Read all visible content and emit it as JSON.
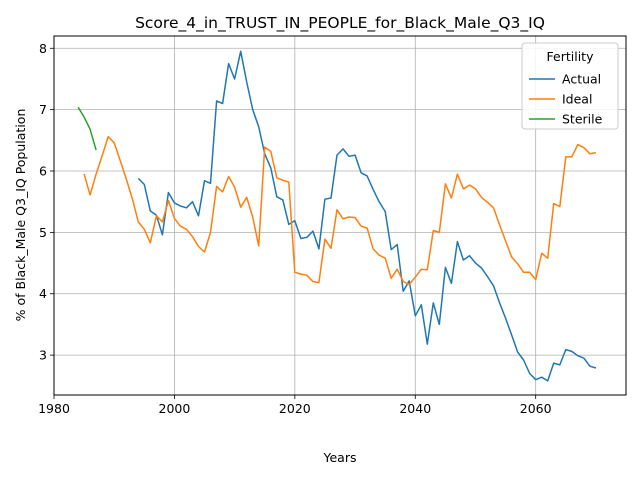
{
  "chart_data": {
    "type": "line",
    "title": "Score_4_in_TRUST_IN_PEOPLE_for_Black_Male_Q3_IQ",
    "xlabel": "Years",
    "ylabel": "% of Black_Male Q3_IQ Population",
    "xlim": [
      1980,
      2075
    ],
    "ylim": [
      2.35,
      8.2
    ],
    "xticks": [
      1980,
      2000,
      2020,
      2040,
      2060
    ],
    "yticks": [
      3,
      4,
      5,
      6,
      7,
      8
    ],
    "grid": true,
    "legend": {
      "title": "Fertility",
      "placement": "top-right"
    },
    "series": [
      {
        "name": "Actual",
        "color": "#1f77b4",
        "points": [
          [
            1994,
            5.88
          ],
          [
            1995,
            5.78
          ],
          [
            1996,
            5.35
          ],
          [
            1997,
            5.28
          ],
          [
            1998,
            4.96
          ],
          [
            1999,
            5.65
          ],
          [
            2000,
            5.48
          ],
          [
            2001,
            5.43
          ],
          [
            2002,
            5.4
          ],
          [
            2003,
            5.5
          ],
          [
            2004,
            5.27
          ],
          [
            2005,
            5.84
          ],
          [
            2006,
            5.8
          ],
          [
            2007,
            7.14
          ],
          [
            2008,
            7.1
          ],
          [
            2009,
            7.75
          ],
          [
            2010,
            7.5
          ],
          [
            2011,
            7.95
          ],
          [
            2012,
            7.45
          ],
          [
            2013,
            7.0
          ],
          [
            2014,
            6.72
          ],
          [
            2015,
            6.28
          ],
          [
            2016,
            6.05
          ],
          [
            2017,
            5.58
          ],
          [
            2018,
            5.53
          ],
          [
            2019,
            5.13
          ],
          [
            2020,
            5.19
          ],
          [
            2021,
            4.9
          ],
          [
            2022,
            4.92
          ],
          [
            2023,
            5.02
          ],
          [
            2024,
            4.73
          ],
          [
            2025,
            5.54
          ],
          [
            2026,
            5.56
          ],
          [
            2027,
            6.26
          ],
          [
            2028,
            6.36
          ],
          [
            2029,
            6.24
          ],
          [
            2030,
            6.26
          ],
          [
            2031,
            5.97
          ],
          [
            2032,
            5.92
          ],
          [
            2033,
            5.7
          ],
          [
            2034,
            5.5
          ],
          [
            2035,
            5.34
          ],
          [
            2036,
            4.72
          ],
          [
            2037,
            4.8
          ],
          [
            2038,
            4.04
          ],
          [
            2039,
            4.21
          ],
          [
            2040,
            3.64
          ],
          [
            2041,
            3.82
          ],
          [
            2042,
            3.18
          ],
          [
            2043,
            3.85
          ],
          [
            2044,
            3.5
          ],
          [
            2045,
            4.43
          ],
          [
            2046,
            4.17
          ],
          [
            2047,
            4.85
          ],
          [
            2048,
            4.55
          ],
          [
            2049,
            4.62
          ],
          [
            2050,
            4.5
          ],
          [
            2051,
            4.42
          ],
          [
            2052,
            4.28
          ],
          [
            2053,
            4.13
          ],
          [
            2054,
            3.85
          ],
          [
            2055,
            3.6
          ],
          [
            2056,
            3.33
          ],
          [
            2057,
            3.05
          ],
          [
            2058,
            2.92
          ],
          [
            2059,
            2.7
          ],
          [
            2060,
            2.6
          ],
          [
            2061,
            2.64
          ],
          [
            2062,
            2.58
          ],
          [
            2063,
            2.87
          ],
          [
            2064,
            2.84
          ],
          [
            2065,
            3.09
          ],
          [
            2066,
            3.06
          ],
          [
            2067,
            2.99
          ],
          [
            2068,
            2.95
          ],
          [
            2069,
            2.82
          ],
          [
            2070,
            2.79
          ]
        ]
      },
      {
        "name": "Ideal",
        "color": "#ff7f0e",
        "points": [
          [
            1985,
            5.95
          ],
          [
            1986,
            5.61
          ],
          [
            1987,
            5.95
          ],
          [
            1988,
            6.25
          ],
          [
            1989,
            6.56
          ],
          [
            1990,
            6.46
          ],
          [
            1991,
            6.17
          ],
          [
            1992,
            5.87
          ],
          [
            1993,
            5.55
          ],
          [
            1994,
            5.17
          ],
          [
            1995,
            5.05
          ],
          [
            1996,
            4.83
          ],
          [
            1997,
            5.27
          ],
          [
            1998,
            5.17
          ],
          [
            1999,
            5.52
          ],
          [
            2000,
            5.23
          ],
          [
            2001,
            5.1
          ],
          [
            2002,
            5.05
          ],
          [
            2003,
            4.93
          ],
          [
            2004,
            4.77
          ],
          [
            2005,
            4.68
          ],
          [
            2006,
            5.0
          ],
          [
            2007,
            5.75
          ],
          [
            2008,
            5.66
          ],
          [
            2009,
            5.91
          ],
          [
            2010,
            5.74
          ],
          [
            2011,
            5.41
          ],
          [
            2012,
            5.57
          ],
          [
            2013,
            5.25
          ],
          [
            2014,
            4.78
          ],
          [
            2015,
            6.39
          ],
          [
            2016,
            6.32
          ],
          [
            2017,
            5.89
          ],
          [
            2018,
            5.85
          ],
          [
            2019,
            5.82
          ],
          [
            2020,
            4.35
          ],
          [
            2021,
            4.32
          ],
          [
            2022,
            4.3
          ],
          [
            2023,
            4.2
          ],
          [
            2024,
            4.18
          ],
          [
            2025,
            4.89
          ],
          [
            2026,
            4.74
          ],
          [
            2027,
            5.37
          ],
          [
            2028,
            5.22
          ],
          [
            2029,
            5.25
          ],
          [
            2030,
            5.24
          ],
          [
            2031,
            5.1
          ],
          [
            2032,
            5.07
          ],
          [
            2033,
            4.73
          ],
          [
            2034,
            4.63
          ],
          [
            2035,
            4.58
          ],
          [
            2036,
            4.25
          ],
          [
            2037,
            4.4
          ],
          [
            2038,
            4.2
          ],
          [
            2039,
            4.15
          ],
          [
            2040,
            4.27
          ],
          [
            2041,
            4.4
          ],
          [
            2042,
            4.39
          ],
          [
            2043,
            5.03
          ],
          [
            2044,
            5.0
          ],
          [
            2045,
            5.79
          ],
          [
            2046,
            5.56
          ],
          [
            2047,
            5.95
          ],
          [
            2048,
            5.71
          ],
          [
            2049,
            5.77
          ],
          [
            2050,
            5.71
          ],
          [
            2051,
            5.57
          ],
          [
            2052,
            5.49
          ],
          [
            2053,
            5.4
          ],
          [
            2054,
            5.12
          ],
          [
            2055,
            4.86
          ],
          [
            2056,
            4.6
          ],
          [
            2057,
            4.49
          ],
          [
            2058,
            4.35
          ],
          [
            2059,
            4.35
          ],
          [
            2060,
            4.23
          ],
          [
            2061,
            4.66
          ],
          [
            2062,
            4.58
          ],
          [
            2063,
            5.47
          ],
          [
            2064,
            5.42
          ],
          [
            2065,
            6.23
          ],
          [
            2066,
            6.23
          ],
          [
            2067,
            6.43
          ],
          [
            2068,
            6.38
          ],
          [
            2069,
            6.28
          ],
          [
            2070,
            6.3
          ]
        ]
      },
      {
        "name": "Sterile",
        "color": "#2ca02c",
        "points": [
          [
            1984,
            7.04
          ],
          [
            1985,
            6.88
          ],
          [
            1986,
            6.68
          ],
          [
            1987,
            6.34
          ]
        ]
      }
    ]
  }
}
